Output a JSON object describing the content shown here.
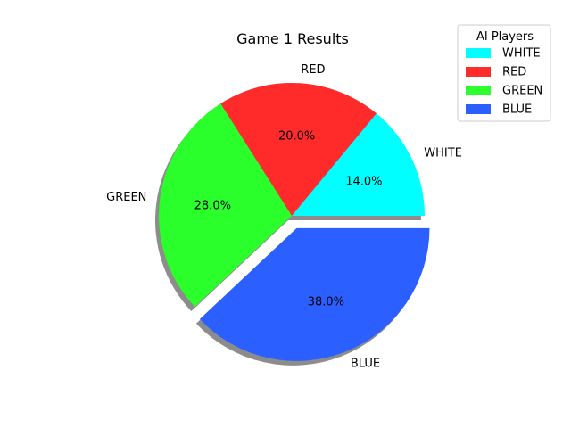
{
  "chart_data": {
    "type": "pie",
    "title": "Game 1 Results",
    "labels": [
      "WHITE",
      "RED",
      "GREEN",
      "BLUE"
    ],
    "values": [
      14.0,
      20.0,
      28.0,
      38.0
    ],
    "percent_labels": [
      "14.0%",
      "20.0%",
      "28.0%",
      "38.0%"
    ],
    "colors": [
      "#00ffff",
      "#ff2b2b",
      "#2bff2b",
      "#2b5fff"
    ],
    "explode": [
      0,
      0,
      0,
      0.1
    ],
    "shadow": true,
    "start_angle": 0,
    "counterclock": true,
    "legend": {
      "title": "AI Players",
      "entries": [
        "WHITE",
        "RED",
        "GREEN",
        "BLUE"
      ],
      "placement": "top-right"
    }
  }
}
